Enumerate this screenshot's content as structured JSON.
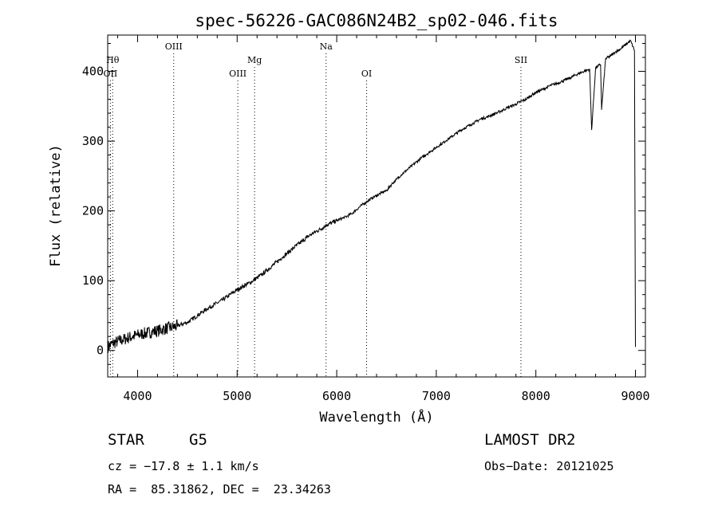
{
  "chart_data": {
    "type": "line",
    "title": "spec-56226-GAC086N24B2_sp02-046.fits",
    "xlabel": "Wavelength (Å)",
    "ylabel": "Flux (relative)",
    "xlim": [
      3700,
      9100
    ],
    "ylim": [
      -38,
      452
    ],
    "xticks": [
      4000,
      5000,
      6000,
      7000,
      8000,
      9000
    ],
    "yticks": [
      0,
      100,
      200,
      300,
      400
    ],
    "grid": false,
    "line_color": "#000000",
    "series": [
      {
        "x": [
          3700,
          3750,
          3800,
          3850,
          3900,
          3950,
          4000,
          4050,
          4100,
          4150,
          4200,
          4250,
          4300,
          4350,
          4400,
          4450,
          4500,
          4550,
          4600,
          4650,
          4700,
          4750,
          4800,
          4850,
          4900,
          4950,
          5000,
          5050,
          5100,
          5150,
          5200,
          5250,
          5300,
          5350,
          5400,
          5450,
          5500,
          5550,
          5600,
          5650,
          5700,
          5750,
          5800,
          5850,
          5900,
          5950,
          6000,
          6050,
          6100,
          6150,
          6200,
          6250,
          6300,
          6350,
          6400,
          6450,
          6500,
          6550,
          6600,
          6650,
          6700,
          6750,
          6800,
          6850,
          6900,
          6950,
          7000,
          7050,
          7100,
          7150,
          7200,
          7250,
          7300,
          7350,
          7400,
          7450,
          7500,
          7550,
          7600,
          7650,
          7700,
          7750,
          7800,
          7850,
          7900,
          7950,
          8000,
          8050,
          8100,
          8150,
          8200,
          8250,
          8300,
          8350,
          8400,
          8450,
          8500,
          8540,
          8560,
          8600,
          8650,
          8660,
          8700,
          8750,
          8800,
          8850,
          8900,
          8950,
          8990,
          9000
        ],
        "y": [
          5,
          10,
          13,
          15,
          18,
          20,
          22,
          24,
          25,
          27,
          28,
          30,
          32,
          33,
          35,
          38,
          40,
          45,
          50,
          55,
          60,
          64,
          68,
          72,
          77,
          82,
          87,
          91,
          95,
          99,
          104,
          109,
          115,
          121,
          127,
          133,
          139,
          145,
          151,
          156,
          162,
          167,
          171,
          175,
          180,
          183,
          186,
          189,
          192,
          196,
          202,
          208,
          213,
          218,
          222,
          226,
          229,
          238,
          245,
          252,
          258,
          264,
          270,
          276,
          281,
          286,
          291,
          296,
          301,
          306,
          311,
          316,
          320,
          324,
          328,
          332,
          334,
          337,
          340,
          343,
          347,
          350,
          353,
          357,
          360,
          365,
          370,
          373,
          376,
          380,
          382,
          385,
          388,
          391,
          395,
          398,
          401,
          403,
          316,
          405,
          410,
          345,
          418,
          422,
          428,
          432,
          438,
          444,
          430,
          5
        ]
      }
    ],
    "lines": [
      {
        "label": "Hθ",
        "x": 3750,
        "row": "upper"
      },
      {
        "label": "OII",
        "x": 3727,
        "row": "lower"
      },
      {
        "label": "OIII",
        "x": 4363,
        "row": "top"
      },
      {
        "label": "OIII",
        "x": 5007,
        "row": "lower"
      },
      {
        "label": "Mg",
        "x": 5175,
        "row": "upper"
      },
      {
        "label": "Na",
        "x": 5893,
        "row": "top"
      },
      {
        "label": "OI",
        "x": 6300,
        "row": "lower"
      },
      {
        "label": "SII",
        "x": 7850,
        "row": "upper"
      }
    ]
  },
  "footer": {
    "object": "STAR",
    "class": "G5",
    "survey": "LAMOST DR2",
    "redshift": "cz = −17.8 ± 1.1 km/s",
    "obs_date": "Obs−Date: 20121025",
    "coords": "RA =  85.31862, DEC =  23.34263"
  }
}
